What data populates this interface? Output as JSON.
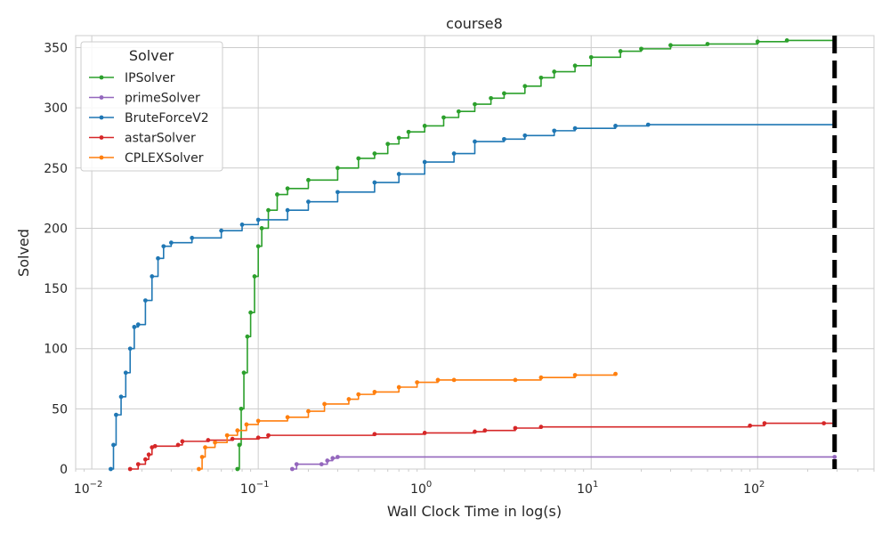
{
  "chart_data": {
    "type": "line",
    "title": "course8",
    "xlabel": "Wall Clock Time in log(s)",
    "ylabel": "Solved",
    "x_scale": "log",
    "xlim": [
      0.008,
      500
    ],
    "ylim": [
      0,
      360
    ],
    "x_ticks": [
      {
        "value": 0.01,
        "base": "10",
        "exp": "−2"
      },
      {
        "value": 0.1,
        "base": "10",
        "exp": "−1"
      },
      {
        "value": 1,
        "base": "10",
        "exp": "0"
      },
      {
        "value": 10,
        "base": "10",
        "exp": "1"
      },
      {
        "value": 100,
        "base": "10",
        "exp": "2"
      }
    ],
    "y_ticks": [
      0,
      50,
      100,
      150,
      200,
      250,
      300,
      350
    ],
    "grid": true,
    "legend": {
      "title": "Solver",
      "position": "top-left"
    },
    "timeout_line": {
      "x": 290,
      "style": "dashed",
      "color": "#000000"
    },
    "series": [
      {
        "name": "IPSolver",
        "color": "#2ca02c",
        "points": [
          [
            0.075,
            0
          ],
          [
            0.077,
            20
          ],
          [
            0.079,
            50
          ],
          [
            0.082,
            80
          ],
          [
            0.086,
            110
          ],
          [
            0.09,
            130
          ],
          [
            0.095,
            160
          ],
          [
            0.1,
            185
          ],
          [
            0.105,
            200
          ],
          [
            0.115,
            215
          ],
          [
            0.13,
            228
          ],
          [
            0.15,
            233
          ],
          [
            0.2,
            240
          ],
          [
            0.3,
            250
          ],
          [
            0.4,
            258
          ],
          [
            0.5,
            262
          ],
          [
            0.6,
            270
          ],
          [
            0.7,
            275
          ],
          [
            0.8,
            280
          ],
          [
            1.0,
            285
          ],
          [
            1.3,
            292
          ],
          [
            1.6,
            297
          ],
          [
            2.0,
            303
          ],
          [
            2.5,
            308
          ],
          [
            3.0,
            312
          ],
          [
            4.0,
            318
          ],
          [
            5.0,
            325
          ],
          [
            6.0,
            330
          ],
          [
            8.0,
            335
          ],
          [
            10.0,
            342
          ],
          [
            15.0,
            347
          ],
          [
            20.0,
            349
          ],
          [
            30.0,
            352
          ],
          [
            50.0,
            353
          ],
          [
            100.0,
            355
          ],
          [
            150.0,
            356
          ],
          [
            290.0,
            356
          ]
        ]
      },
      {
        "name": "primeSolver",
        "color": "#9467bd",
        "points": [
          [
            0.16,
            0
          ],
          [
            0.17,
            4
          ],
          [
            0.24,
            4
          ],
          [
            0.26,
            7
          ],
          [
            0.28,
            9
          ],
          [
            0.3,
            10
          ],
          [
            290.0,
            10
          ]
        ]
      },
      {
        "name": "BruteForceV2",
        "color": "#1f77b4",
        "points": [
          [
            0.013,
            0
          ],
          [
            0.0135,
            20
          ],
          [
            0.014,
            45
          ],
          [
            0.015,
            60
          ],
          [
            0.016,
            80
          ],
          [
            0.017,
            100
          ],
          [
            0.018,
            118
          ],
          [
            0.019,
            120
          ],
          [
            0.021,
            140
          ],
          [
            0.023,
            160
          ],
          [
            0.025,
            175
          ],
          [
            0.027,
            185
          ],
          [
            0.03,
            188
          ],
          [
            0.04,
            192
          ],
          [
            0.06,
            198
          ],
          [
            0.08,
            203
          ],
          [
            0.1,
            207
          ],
          [
            0.15,
            215
          ],
          [
            0.2,
            222
          ],
          [
            0.3,
            230
          ],
          [
            0.5,
            238
          ],
          [
            0.7,
            245
          ],
          [
            1.0,
            255
          ],
          [
            1.5,
            262
          ],
          [
            2.0,
            272
          ],
          [
            3.0,
            274
          ],
          [
            4.0,
            277
          ],
          [
            6.0,
            281
          ],
          [
            8.0,
            283
          ],
          [
            14.0,
            285
          ],
          [
            22.0,
            286
          ],
          [
            290.0,
            286
          ]
        ]
      },
      {
        "name": "astarSolver",
        "color": "#d62728",
        "points": [
          [
            0.017,
            0
          ],
          [
            0.019,
            4
          ],
          [
            0.021,
            8
          ],
          [
            0.022,
            12
          ],
          [
            0.023,
            18
          ],
          [
            0.024,
            19
          ],
          [
            0.033,
            20
          ],
          [
            0.035,
            23
          ],
          [
            0.05,
            24
          ],
          [
            0.07,
            25
          ],
          [
            0.1,
            26
          ],
          [
            0.115,
            28
          ],
          [
            0.5,
            29
          ],
          [
            1.0,
            30
          ],
          [
            2.0,
            31
          ],
          [
            2.3,
            32
          ],
          [
            3.5,
            34
          ],
          [
            5.0,
            35
          ],
          [
            90.0,
            36
          ],
          [
            110.0,
            38
          ],
          [
            250.0,
            38
          ],
          [
            290.0,
            40
          ]
        ]
      },
      {
        "name": "CPLEXSolver",
        "color": "#ff7f0e",
        "points": [
          [
            0.044,
            0
          ],
          [
            0.046,
            10
          ],
          [
            0.048,
            18
          ],
          [
            0.055,
            22
          ],
          [
            0.065,
            28
          ],
          [
            0.075,
            32
          ],
          [
            0.085,
            37
          ],
          [
            0.1,
            40
          ],
          [
            0.15,
            43
          ],
          [
            0.2,
            48
          ],
          [
            0.25,
            54
          ],
          [
            0.35,
            58
          ],
          [
            0.4,
            62
          ],
          [
            0.5,
            64
          ],
          [
            0.7,
            68
          ],
          [
            0.9,
            72
          ],
          [
            1.2,
            74
          ],
          [
            1.5,
            74
          ],
          [
            3.5,
            74
          ],
          [
            5.0,
            76
          ],
          [
            8.0,
            78
          ],
          [
            14.0,
            79
          ]
        ]
      }
    ]
  }
}
